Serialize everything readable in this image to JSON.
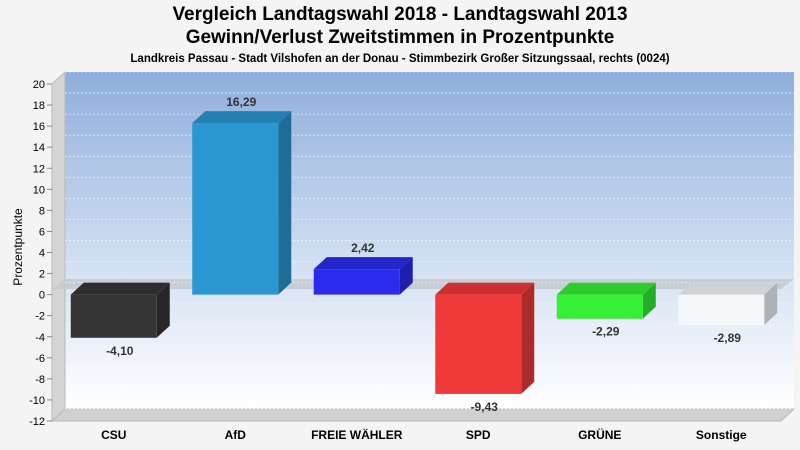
{
  "chart_data": {
    "type": "bar",
    "title": "Vergleich Landtagswahl 2018 - Landtagswahl 2013",
    "subtitle": "Gewinn/Verlust Zweitstimmen in Prozentpunkte",
    "caption": "Landkreis Passau - Stadt Vilshofen an der Donau - Stimmbezirk Großer Sitzungssaal, rechts (0024)",
    "ylabel": "Prozentpunkte",
    "xlabel": "",
    "ylim": [
      -12,
      20
    ],
    "yticks": [
      20,
      18,
      16,
      14,
      12,
      10,
      8,
      6,
      4,
      2,
      0,
      -2,
      -4,
      -6,
      -8,
      -10,
      -12
    ],
    "grid": true,
    "categories": [
      "CSU",
      "AfD",
      "FREIE WÄHLER",
      "SPD",
      "GRÜNE",
      "Sonstige"
    ],
    "values": [
      -4.1,
      16.29,
      2.42,
      -9.43,
      -2.29,
      -2.89
    ],
    "value_labels": [
      "-4,10",
      "16,29",
      "2,42",
      "-9,43",
      "-2,29",
      "-2,89"
    ],
    "colors": [
      "#363636",
      "#2a97d2",
      "#2b2bf0",
      "#f03a3a",
      "#35f035",
      "#f4f6fa"
    ]
  }
}
